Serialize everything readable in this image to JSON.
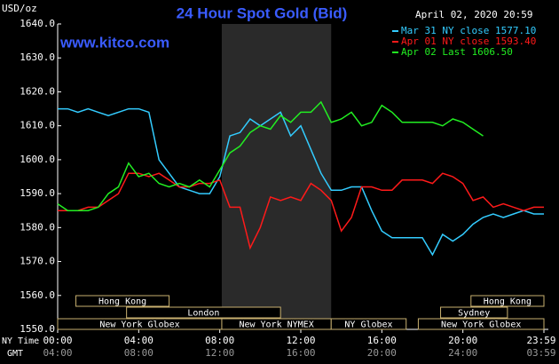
{
  "chart_data": {
    "type": "line",
    "title": "24 Hour Spot Gold (Bid)",
    "unit": "USD/oz",
    "timestamp": "April 02, 2020 20:59",
    "website": "www.kitco.com",
    "x_row_labels": [
      "NY Time",
      "GMT"
    ],
    "x": [
      0,
      0.5,
      1,
      1.5,
      2,
      2.5,
      3,
      3.5,
      4,
      4.5,
      5,
      5.5,
      6,
      6.5,
      7,
      7.5,
      8,
      8.5,
      9,
      9.5,
      10,
      10.5,
      11,
      11.5,
      12,
      12.5,
      13,
      13.5,
      14,
      14.5,
      15,
      15.5,
      16,
      16.5,
      17,
      17.5,
      18,
      18.5,
      19,
      19.5,
      20,
      20.5,
      21,
      21.5,
      22,
      22.5,
      23,
      23.5,
      24
    ],
    "series": [
      {
        "name": "Mar 31 NY close 1577.10",
        "color": "#33ccff",
        "values": [
          1615,
          1615,
          1614,
          1615,
          1614,
          1613,
          1614,
          1615,
          1615,
          1614,
          1600,
          1596,
          1592,
          1591,
          1590,
          1590,
          1595,
          1607,
          1608,
          1612,
          1610,
          1612,
          1614,
          1607,
          1610,
          1603,
          1596,
          1591,
          1591,
          1592,
          1592,
          1585,
          1579,
          1577,
          1577,
          1577,
          1577,
          1572,
          1578,
          1576,
          1578,
          1581,
          1583,
          1584,
          1583,
          1584,
          1585,
          1584,
          1584
        ]
      },
      {
        "name": "Apr 01 NY close 1593.40",
        "color": "#ff1a1a",
        "values": [
          1585,
          1585,
          1585,
          1586,
          1586,
          1588,
          1590,
          1596,
          1596,
          1595,
          1596,
          1594,
          1592,
          1592,
          1593,
          1593,
          1594,
          1586,
          1586,
          1574,
          1580,
          1589,
          1588,
          1589,
          1588,
          1593,
          1591,
          1588,
          1579,
          1583,
          1592,
          1592,
          1591,
          1591,
          1594,
          1594,
          1594,
          1593,
          1596,
          1595,
          1593,
          1588,
          1589,
          1586,
          1587,
          1586,
          1585,
          1586,
          1586
        ]
      },
      {
        "name": "Apr 02 Last 1606.50",
        "color": "#22ee22",
        "values": [
          1587,
          1585,
          1585,
          1585,
          1586,
          1590,
          1592,
          1599,
          1595,
          1596,
          1593,
          1592,
          1593,
          1592,
          1594,
          1592,
          1597,
          1602,
          1604,
          1608,
          1610,
          1609,
          1613,
          1611,
          1614,
          1614,
          1617,
          1611,
          1612,
          1614,
          1610,
          1611,
          1616,
          1614,
          1611,
          1611,
          1611,
          1611,
          1610,
          1612,
          1611,
          1609,
          1607,
          null,
          null,
          null,
          null,
          null,
          null
        ]
      }
    ],
    "xlim": [
      0,
      24
    ],
    "xticks": [
      {
        "value": 0,
        "label": "00:00"
      },
      {
        "value": 4,
        "label": "04:00"
      },
      {
        "value": 8,
        "label": "08:00"
      },
      {
        "value": 12,
        "label": "12:00"
      },
      {
        "value": 16,
        "label": "16:00"
      },
      {
        "value": 20,
        "label": "20:00"
      },
      {
        "value": 24,
        "label": "23:59"
      }
    ],
    "gmt_labels": [
      "04:00",
      "08:00",
      "12:00",
      "16:00",
      "20:00",
      "24:00",
      "03:59"
    ],
    "ylim": [
      1550,
      1640
    ],
    "yticks": [
      {
        "value": 1550,
        "label": "1550.0"
      },
      {
        "value": 1560,
        "label": "1560.0"
      },
      {
        "value": 1570,
        "label": "1570.0"
      },
      {
        "value": 1580,
        "label": "1580.0"
      },
      {
        "value": 1590,
        "label": "1590.0"
      },
      {
        "value": 1600,
        "label": "1600.0"
      },
      {
        "value": 1610,
        "label": "1610.0"
      },
      {
        "value": 1620,
        "label": "1620.0"
      },
      {
        "value": 1630,
        "label": "1630.0"
      },
      {
        "value": 1640,
        "label": "1640.0"
      }
    ],
    "highlight": {
      "start": 8.1,
      "end": 13.5
    },
    "sessions": [
      [
        {
          "label": "Hong Kong",
          "start": 0.9,
          "end": 5.5
        },
        {
          "label": "Hong Kong",
          "start": 20.4,
          "end": 24
        }
      ],
      [
        {
          "label": "London",
          "start": 3.4,
          "end": 11
        },
        {
          "label": "Sydney",
          "start": 18.9,
          "end": 22.2
        }
      ],
      [
        {
          "label": "New York Globex",
          "start": 0,
          "end": 8.1
        },
        {
          "label": "New York NYMEX",
          "start": 8.1,
          "end": 13.5
        },
        {
          "label": "NY Globex",
          "start": 13.5,
          "end": 17.2
        },
        {
          "label": "New York Globex",
          "start": 17.8,
          "end": 24
        }
      ]
    ]
  }
}
